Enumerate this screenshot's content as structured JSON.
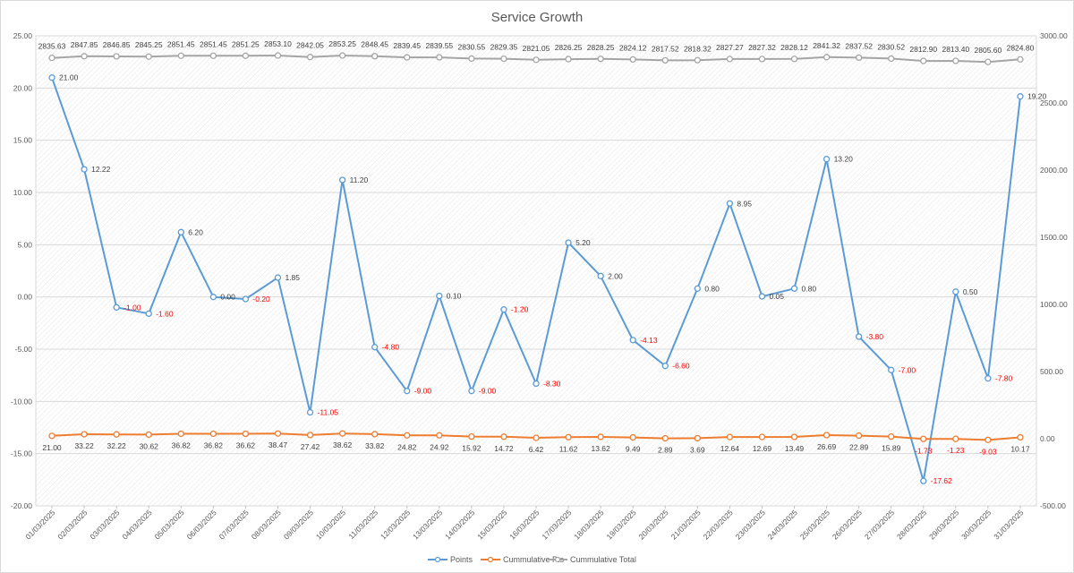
{
  "chart_data": {
    "type": "line",
    "title": "Service Growth",
    "x": [
      "01/03/2025",
      "02/03/2025",
      "03/03/2025",
      "04/03/2025",
      "05/03/2025",
      "06/03/2025",
      "07/03/2025",
      "08/03/2025",
      "09/03/2025",
      "10/03/2025",
      "11/03/2025",
      "12/03/2025",
      "13/03/2025",
      "14/03/2025",
      "15/03/2025",
      "16/03/2025",
      "17/03/2025",
      "18/03/2025",
      "19/03/2025",
      "20/03/2025",
      "21/03/2025",
      "22/03/2025",
      "23/03/2025",
      "24/03/2025",
      "25/03/2025",
      "26/03/2025",
      "27/03/2025",
      "28/03/2025",
      "29/03/2025",
      "30/03/2025",
      "31/03/2025"
    ],
    "y_left": {
      "min": -20,
      "max": 25,
      "step": 5,
      "ticks": [
        "-20.00",
        "-15.00",
        "-10.00",
        "-5.00",
        "0.00",
        "5.00",
        "10.00",
        "15.00",
        "20.00",
        "25.00"
      ]
    },
    "y_right": {
      "min": -500,
      "max": 3000,
      "step": 500,
      "ticks": [
        "-500.00",
        "0.00",
        "500.00",
        "1000.00",
        "1500.00",
        "2000.00",
        "2500.00",
        "3000.00"
      ]
    },
    "legend_position": "bottom",
    "grid": true,
    "series": [
      {
        "name": "Points",
        "axis": "left",
        "color": "#5b9bd5",
        "values": [
          21.0,
          12.22,
          -1.0,
          -1.6,
          6.2,
          0.0,
          -0.2,
          1.85,
          -11.05,
          11.2,
          -4.8,
          -9.0,
          0.1,
          -9.0,
          -1.2,
          -8.3,
          5.2,
          2.0,
          -4.13,
          -6.6,
          0.8,
          8.95,
          0.05,
          0.8,
          13.2,
          -3.8,
          -7.0,
          -17.62,
          0.5,
          -7.8,
          19.2
        ],
        "labels": [
          "21.00",
          "12.22",
          "-1.00",
          "-1.60",
          "6.20",
          "0.00",
          "-0.20",
          "1.85",
          "-11.05",
          "11.20",
          "-4.80",
          "-9.00",
          "0.10",
          "-9.00",
          "-1.20",
          "-8.30",
          "5.20",
          "2.00",
          "-4.13",
          "-6.60",
          "0.80",
          "8.95",
          "0.05",
          "0.80",
          "13.20",
          "-3.80",
          "-7.00",
          "-17.62",
          "0.50",
          "-7.80",
          "19.20"
        ],
        "negative_label_color": "#ff0000",
        "positive_label_color": "#404040"
      },
      {
        "name": "Cummulative Pts",
        "axis": "right",
        "color": "#ed7d31",
        "values": [
          21.0,
          33.22,
          32.22,
          30.62,
          36.82,
          36.82,
          36.62,
          38.47,
          27.42,
          38.62,
          33.82,
          24.82,
          24.92,
          15.92,
          14.72,
          6.42,
          11.62,
          13.62,
          9.49,
          2.89,
          3.69,
          12.64,
          12.69,
          13.49,
          26.69,
          22.89,
          15.89,
          -1.73,
          -1.23,
          -9.03,
          10.17
        ],
        "labels": [
          "21.00",
          "33.22",
          "32.22",
          "30.62",
          "36.82",
          "36.82",
          "36.62",
          "38.47",
          "27.42",
          "38.62",
          "33.82",
          "24.82",
          "24.92",
          "15.92",
          "14.72",
          "6.42",
          "11.62",
          "13.62",
          "9.49",
          "2.89",
          "3.69",
          "12.64",
          "12.69",
          "13.49",
          "26.69",
          "22.89",
          "15.89",
          "-1.73",
          "-1.23",
          "-9.03",
          "10.17"
        ],
        "negative_label_color": "#ff0000",
        "positive_label_color": "#404040"
      },
      {
        "name": "Cummulative Total",
        "axis": "right",
        "color": "#a5a5a5",
        "values": [
          2835.63,
          2847.85,
          2846.85,
          2845.25,
          2851.45,
          2851.45,
          2851.25,
          2853.1,
          2842.05,
          2853.25,
          2848.45,
          2839.45,
          2839.55,
          2830.55,
          2829.35,
          2821.05,
          2826.25,
          2828.25,
          2824.12,
          2817.52,
          2818.32,
          2827.27,
          2827.32,
          2828.12,
          2841.32,
          2837.52,
          2830.52,
          2812.9,
          2813.4,
          2805.6,
          2824.8
        ],
        "labels": [
          "2835.63",
          "2847.85",
          "2846.85",
          "2845.25",
          "2851.45",
          "2851.45",
          "2851.25",
          "2853.10",
          "2842.05",
          "2853.25",
          "2848.45",
          "2839.45",
          "2839.55",
          "2830.55",
          "2829.35",
          "2821.05",
          "2826.25",
          "2828.25",
          "2824.12",
          "2817.52",
          "2818.32",
          "2827.27",
          "2827.32",
          "2828.12",
          "2841.32",
          "2837.52",
          "2830.52",
          "2812.90",
          "2813.40",
          "2805.60",
          "2824.80"
        ],
        "negative_label_color": "#ff0000",
        "positive_label_color": "#404040"
      }
    ]
  }
}
